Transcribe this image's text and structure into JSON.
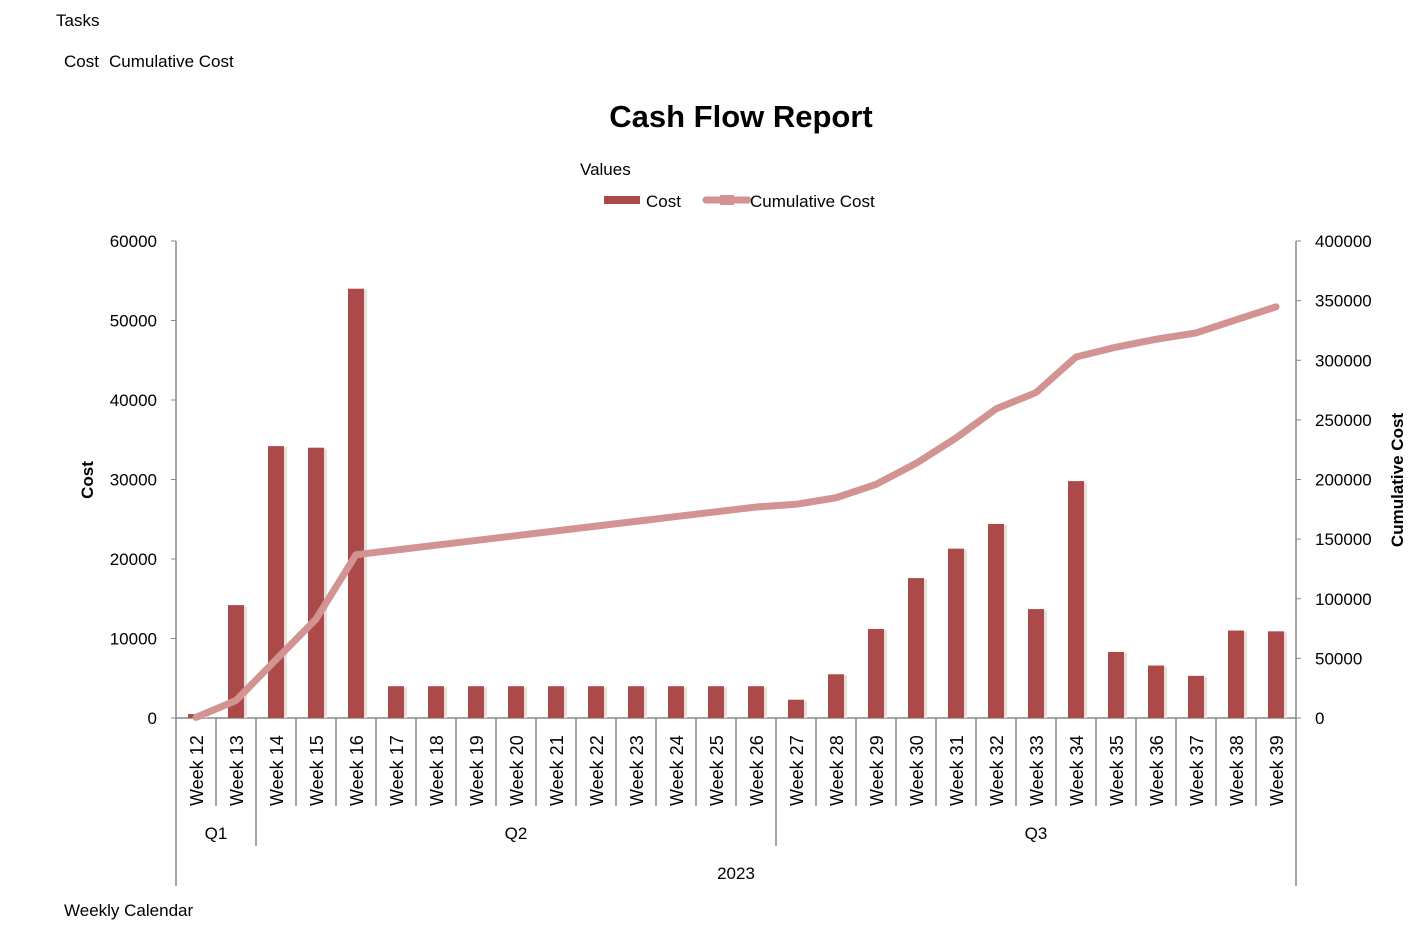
{
  "filters": {
    "tasks_label": "Tasks",
    "values_fields": [
      "Cost",
      "Cumulative Cost"
    ],
    "axis_field_label": "Weekly Calendar"
  },
  "chart_data": {
    "type": "bar",
    "title": "Cash Flow Report",
    "legend_title": "Values",
    "legend_placement": "top-center",
    "categories": [
      "Week 12",
      "Week 13",
      "Week 14",
      "Week 15",
      "Week 16",
      "Week 17",
      "Week 18",
      "Week 19",
      "Week 20",
      "Week 21",
      "Week 22",
      "Week 23",
      "Week 24",
      "Week 25",
      "Week 26",
      "Week 27",
      "Week 28",
      "Week 29",
      "Week 30",
      "Week 31",
      "Week 32",
      "Week 33",
      "Week 34",
      "Week 35",
      "Week 36",
      "Week 37",
      "Week 38",
      "Week 39"
    ],
    "quarters": [
      {
        "label": "Q1",
        "count": 2
      },
      {
        "label": "Q2",
        "count": 13
      },
      {
        "label": "Q3",
        "count": 13
      }
    ],
    "year": "2023",
    "series": [
      {
        "name": "Cost",
        "type": "bar",
        "axis": "left",
        "color": "#ab4a48",
        "values": [
          500,
          14200,
          34200,
          34000,
          54000,
          4000,
          4000,
          4000,
          4000,
          4000,
          4000,
          4000,
          4000,
          4000,
          4000,
          2300,
          5500,
          11200,
          17600,
          21300,
          24400,
          13700,
          29800,
          8300,
          6600,
          5300,
          11000,
          10900
        ]
      },
      {
        "name": "Cumulative Cost",
        "type": "line",
        "axis": "right",
        "color": "#d29392",
        "values": [
          500,
          14700,
          48900,
          82900,
          136900,
          140900,
          144900,
          148900,
          152900,
          156900,
          160900,
          164900,
          168900,
          172900,
          176900,
          179200,
          184700,
          195900,
          213500,
          234800,
          259200,
          272900,
          302700,
          311000,
          317600,
          322900,
          333900,
          344800
        ]
      }
    ],
    "ylabel": "Cost",
    "ylim": [
      0,
      60000
    ],
    "yticks": [
      "0",
      "10000",
      "20000",
      "30000",
      "40000",
      "50000",
      "60000"
    ],
    "y2label": "Cumulative Cost",
    "y2lim": [
      0,
      400000
    ],
    "y2ticks": [
      "0",
      "50000",
      "100000",
      "150000",
      "200000",
      "250000",
      "300000",
      "350000",
      "400000"
    ],
    "grid": false
  }
}
